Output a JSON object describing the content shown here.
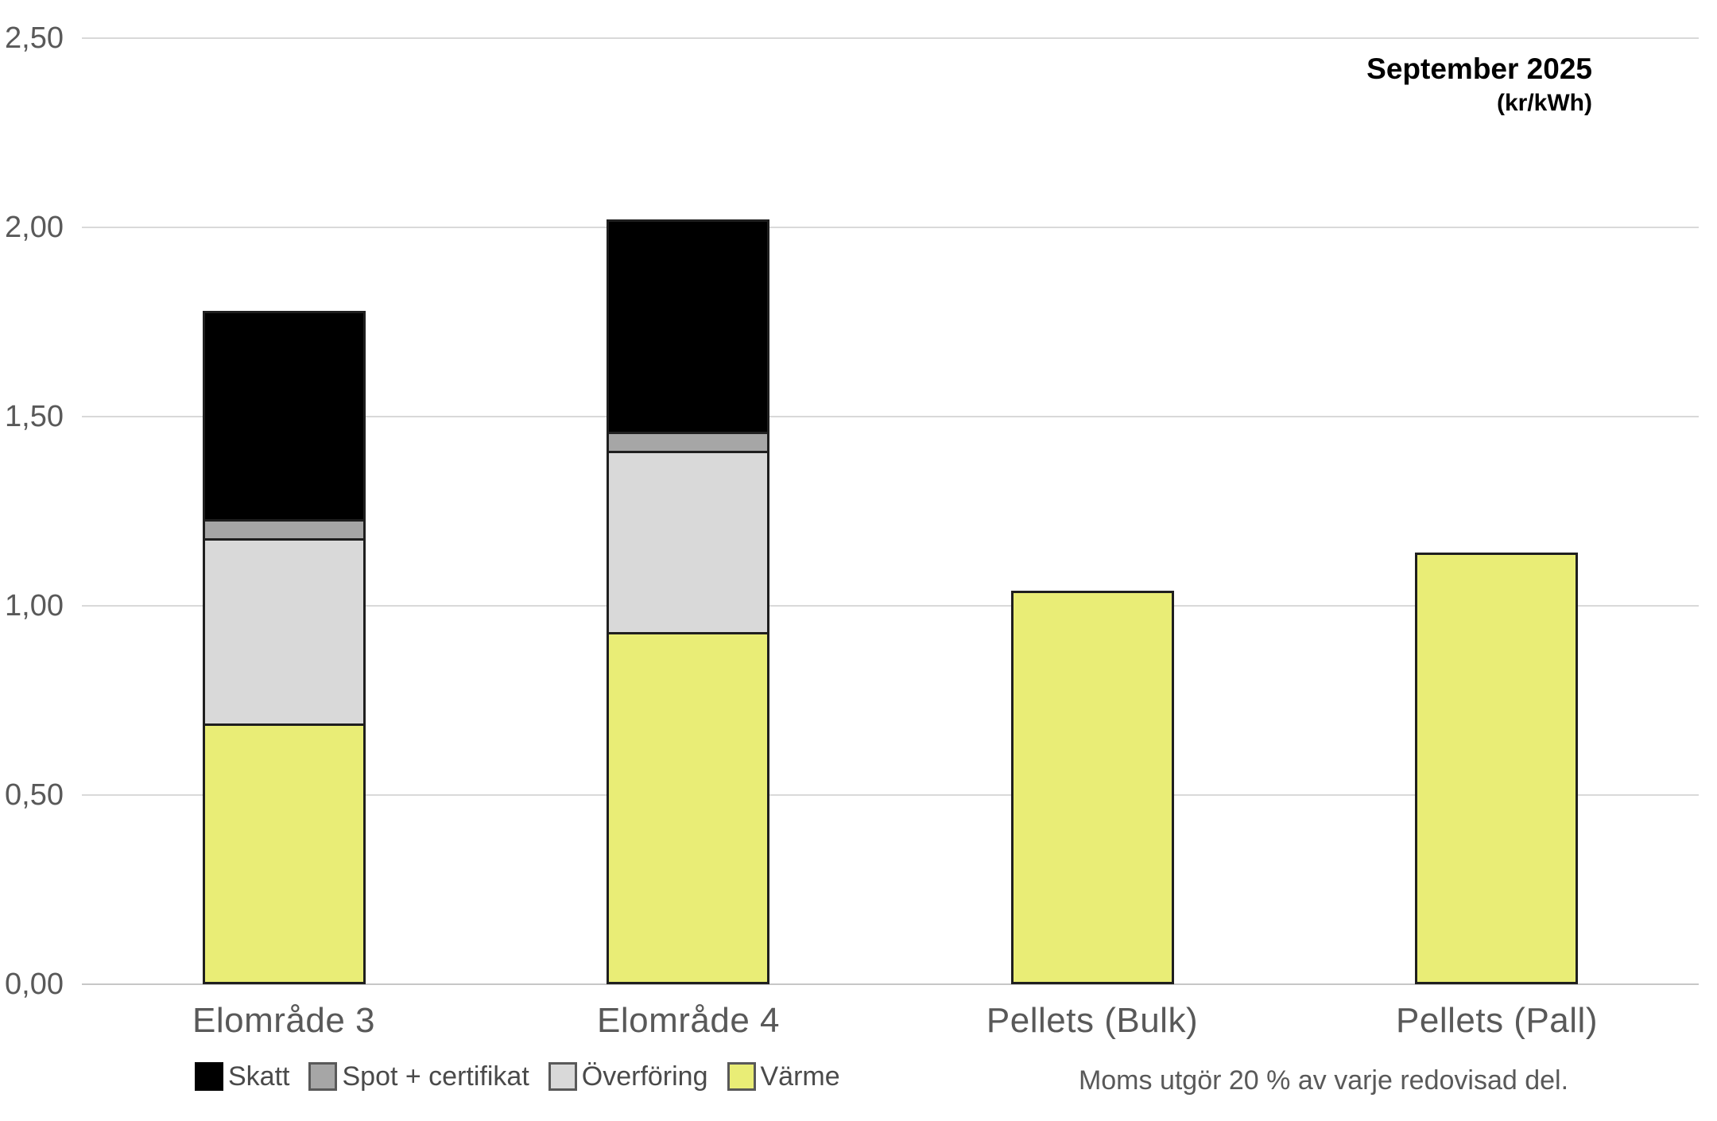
{
  "title": {
    "line1": "September 2025",
    "line2": "(kr/kWh)"
  },
  "note": "Moms utgör 20 % av varje redovisad del.",
  "colors": {
    "skatt": "#000000",
    "spot_certifikat": "#a6a6a6",
    "overforing": "#d9d9d9",
    "varme": "#e9ed76",
    "bar_border": "#1f1f1f",
    "gridline": "#d9d9d9",
    "text": "#595959",
    "title_text": "#000000",
    "background": "#ffffff"
  },
  "chart_data": {
    "type": "bar",
    "stacked": true,
    "title": "September 2025",
    "subtitle": "(kr/kWh)",
    "unit": "kr/kWh",
    "categories": [
      "Elområde 3",
      "Elområde 4",
      "Pellets (Bulk)",
      "Pellets (Pall)"
    ],
    "series": [
      {
        "name": "Värme",
        "color": "#e9ed76",
        "values": [
          0.69,
          0.93,
          1.04,
          1.14
        ]
      },
      {
        "name": "Överföring",
        "color": "#d9d9d9",
        "values": [
          0.49,
          0.48,
          0.0,
          0.0
        ]
      },
      {
        "name": "Spot + certifikat",
        "color": "#a6a6a6",
        "values": [
          0.05,
          0.05,
          0.0,
          0.0
        ]
      },
      {
        "name": "Skatt",
        "color": "#000000",
        "values": [
          0.55,
          0.56,
          0.0,
          0.0
        ]
      }
    ],
    "totals": [
      1.78,
      2.02,
      1.04,
      1.14
    ],
    "xlabel": "",
    "ylabel": "",
    "ylim": [
      0,
      2.5
    ],
    "ytick_step": 0.5,
    "ytick_labels": [
      "0,00",
      "0,50",
      "1,00",
      "1,50",
      "2,00",
      "2,50"
    ],
    "grid": true,
    "legend_position": "bottom",
    "legend_order": [
      "Skatt",
      "Spot + certifikat",
      "Överföring",
      "Värme"
    ],
    "annotation": "Moms utgör 20 % av varje redovisad del."
  }
}
